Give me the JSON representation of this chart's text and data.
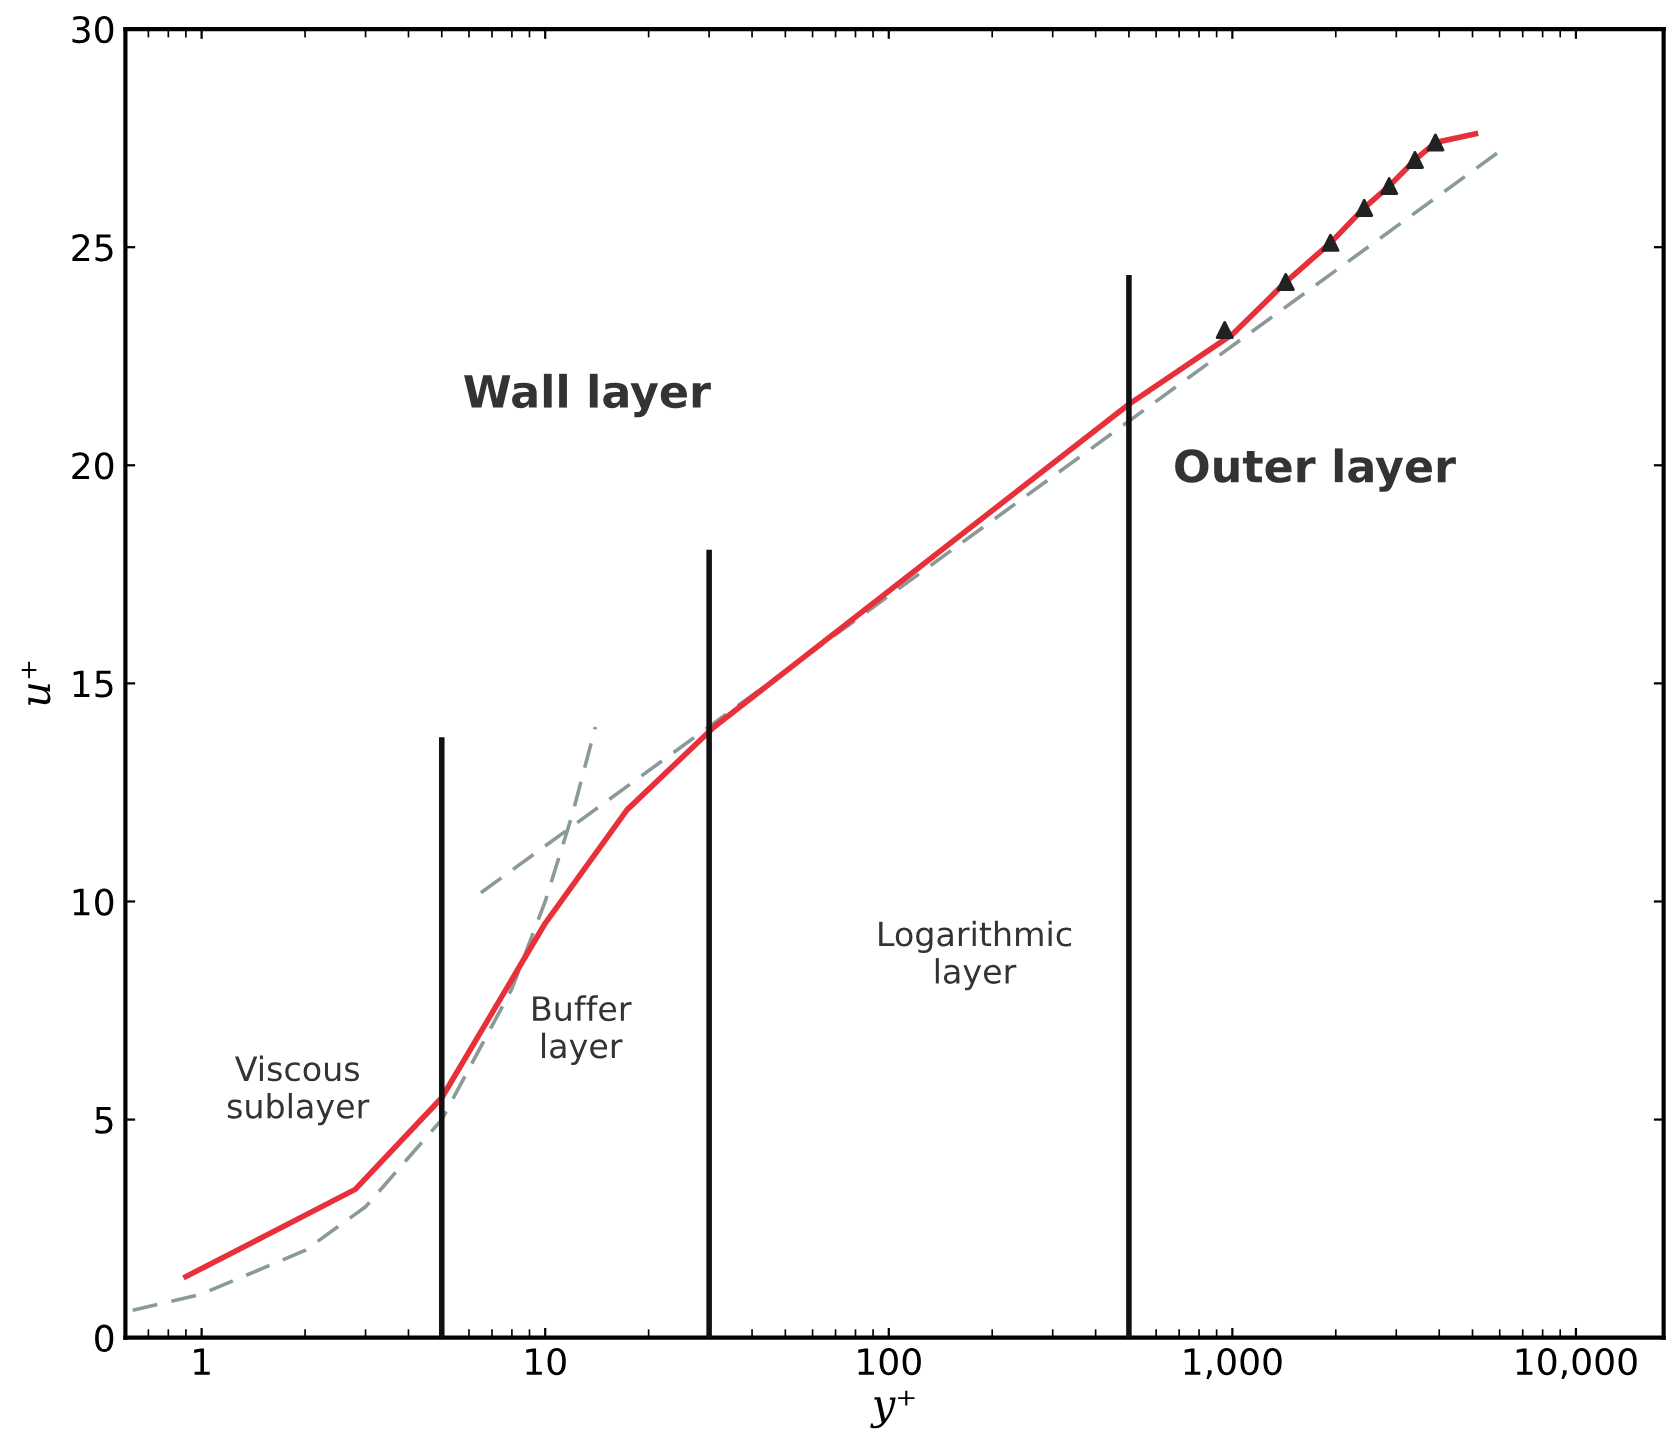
{
  "chart_data": {
    "type": "line",
    "xlabel": "y⁺",
    "ylabel": "u⁺",
    "log": "x",
    "xlim": [
      0.6,
      18000
    ],
    "ylim": [
      0,
      30
    ],
    "xticks": [
      1,
      10,
      100,
      {
        "value": 1000,
        "label": "1,000"
      },
      {
        "value": 10000,
        "label": "10,000"
      }
    ],
    "yticks": [
      0,
      5,
      10,
      15,
      20,
      25,
      30
    ],
    "grid": false,
    "legend": false,
    "series": [
      {
        "type": "line",
        "color": "#8a9a96",
        "line_style": "dashed",
        "x": [
          0.63,
          1,
          2,
          3,
          5,
          8,
          10,
          12,
          14
        ],
        "values": [
          0.63,
          1,
          2,
          3,
          5,
          8,
          10,
          12,
          14
        ]
      },
      {
        "type": "line",
        "color": "#8a9a96",
        "line_style": "dashed",
        "x": [
          6.5,
          6000
        ],
        "values": [
          10.2,
          27.2
        ]
      },
      {
        "type": "line",
        "color": "#e8303a",
        "line_style": "solid",
        "x": [
          0.9,
          2.8,
          5,
          10,
          17.3,
          31,
          500,
          1000,
          1430,
          1930,
          2420,
          2860,
          3400,
          3900,
          5100
        ],
        "values": [
          1.4,
          3.4,
          5.5,
          9.5,
          12.1,
          14,
          21.4,
          23,
          24.2,
          25.1,
          25.9,
          26.4,
          27,
          27.4,
          27.6
        ]
      },
      {
        "type": "scatter",
        "color": "#222222",
        "marker": "triangle",
        "x": [
          950,
          1430,
          1930,
          2420,
          2860,
          3400,
          3900
        ],
        "values": [
          23.1,
          24.2,
          25.1,
          25.9,
          26.4,
          27,
          27.4
        ]
      },
      {
        "type": "line",
        "color": "#111111",
        "line_style": "solid",
        "x": [
          5,
          5
        ],
        "values": [
          0,
          13.7
        ]
      },
      {
        "type": "line",
        "color": "#111111",
        "line_style": "solid",
        "x": [
          30,
          30
        ],
        "values": [
          0,
          18
        ]
      },
      {
        "type": "line",
        "color": "#111111",
        "line_style": "solid",
        "x": [
          500,
          500
        ],
        "values": [
          0,
          24.3
        ]
      }
    ],
    "annotations": [
      "Wall layer",
      "Outer layer",
      "Viscous\nsublayer",
      "Buffer\nlayer",
      "Logarithmic\nlayer"
    ]
  }
}
